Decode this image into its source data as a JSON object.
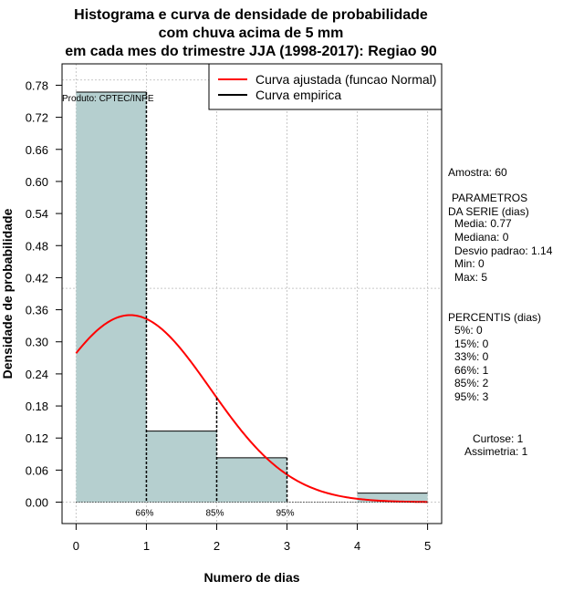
{
  "title_lines": [
    "Histograma e curva de densidade de probabilidade",
    "com chuva acima de 5 mm",
    "em cada mes do trimestre JJA (1998-2017): Regiao 90"
  ],
  "source": "Produto: CPTEC/INPE",
  "legend": {
    "fitted": "Curva ajustada (funcao Normal)",
    "empirical": "Curva empirica"
  },
  "colors": {
    "bars": "#b5cfcf",
    "fitted": "#ff0000",
    "empirical": "#000000",
    "grid": "#c8c8c8"
  },
  "stats": {
    "sample": "Amostra: 60",
    "params_header_1": "PARAMETROS",
    "params_header_2": "DA SERIE (dias)",
    "media": "Media: 0.77",
    "mediana": "Mediana: 0",
    "desvio": "Desvio padrao: 1.14",
    "min": "Min: 0",
    "max": "Max: 5",
    "percentis_header": "PERCENTIS (dias)",
    "p5": "5%: 0",
    "p15": "15%: 0",
    "p33": "33%: 0",
    "p66": "66%: 1",
    "p85": "85%: 2",
    "p95": "95%: 3",
    "curtose": "Curtose: 1",
    "assimetria": "Assimetria: 1"
  },
  "chart_data": {
    "type": "bar",
    "title": "Histograma e curva de densidade de probabilidade com chuva acima de 5 mm em cada mes do trimestre JJA (1998-2017): Regiao 90",
    "xlabel": "Numero de dias",
    "ylabel": "Densidade de probabilidade",
    "xlim": [
      -0.2,
      5.2
    ],
    "ylim": [
      -0.04,
      0.82
    ],
    "x_ticks": [
      0,
      1,
      2,
      3,
      4,
      5
    ],
    "y_ticks": [
      0.0,
      0.06,
      0.12,
      0.18,
      0.24,
      0.3,
      0.36,
      0.42,
      0.48,
      0.54,
      0.6,
      0.66,
      0.72,
      0.78
    ],
    "y_tick_labels": [
      "0.00",
      "0.06",
      "0.12",
      "0.18",
      "0.24",
      "0.30",
      "0.36",
      "0.42",
      "0.48",
      "0.54",
      "0.60",
      "0.66",
      "0.72",
      "0.78"
    ],
    "grid": true,
    "histogram": [
      {
        "from": 0,
        "to": 1,
        "density": 0.767
      },
      {
        "from": 1,
        "to": 2,
        "density": 0.133
      },
      {
        "from": 2,
        "to": 3,
        "density": 0.083
      },
      {
        "from": 3,
        "to": 4,
        "density": 0.0
      },
      {
        "from": 4,
        "to": 5,
        "density": 0.017
      }
    ],
    "normal_fit": {
      "mean": 0.77,
      "sd": 1.14,
      "x_range": [
        0,
        5
      ]
    },
    "percentile_markers": [
      {
        "x": 1,
        "label": "66%"
      },
      {
        "x": 2,
        "label": "85%"
      },
      {
        "x": 3,
        "label": "95%"
      }
    ],
    "legend_position": "top-right"
  }
}
